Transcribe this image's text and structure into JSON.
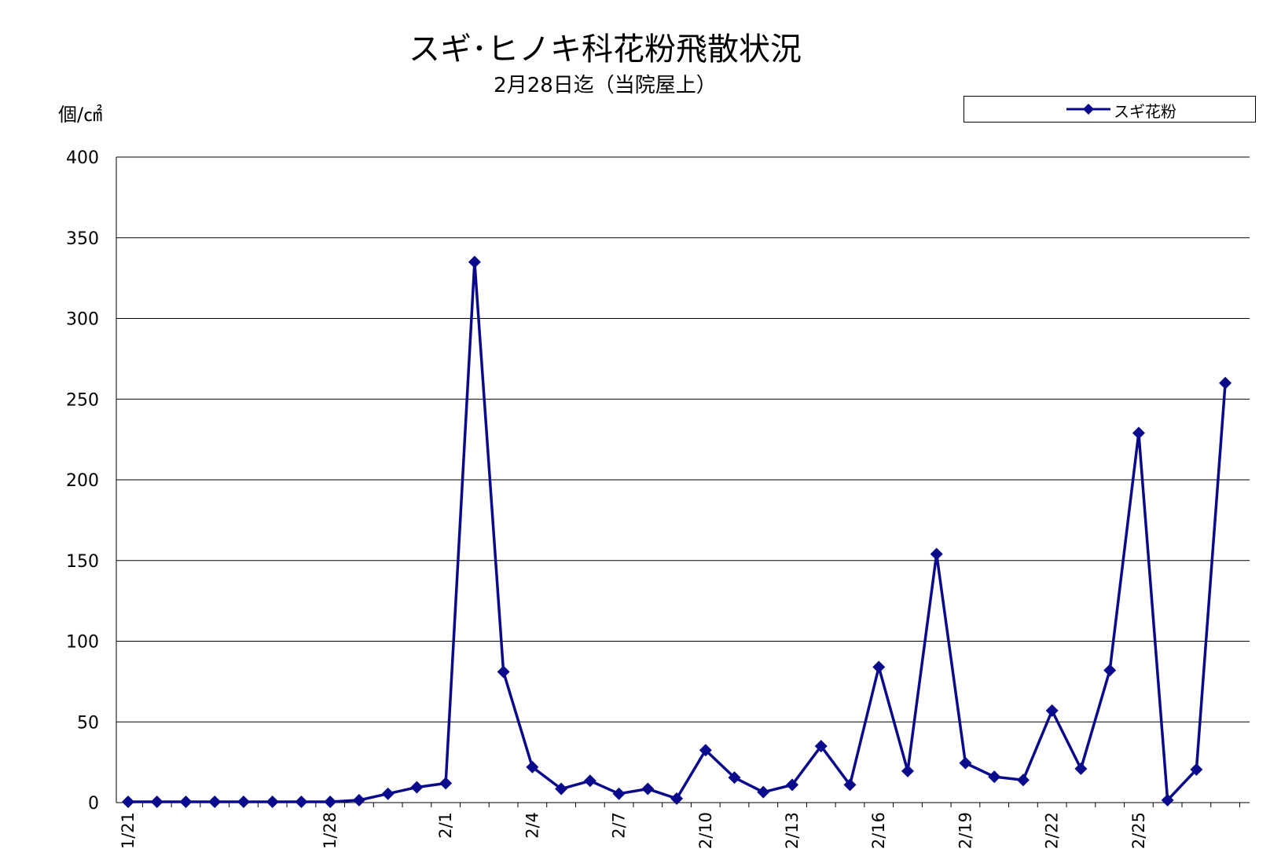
{
  "title": "スギ･ヒノキ科花粉飛散状況",
  "subtitle": "2月28日迄（当院屋上）",
  "chart_data": {
    "type": "line",
    "ylabel": "個/㎠",
    "ylim": [
      0,
      400
    ],
    "yticks": [
      0,
      50,
      100,
      150,
      200,
      250,
      300,
      350,
      400
    ],
    "grid": true,
    "legend_position": "top-right",
    "x_tick_labels": [
      {
        "index": 0,
        "label": "1/21"
      },
      {
        "index": 7,
        "label": "1/28"
      },
      {
        "index": 11,
        "label": "2/1"
      },
      {
        "index": 14,
        "label": "2/4"
      },
      {
        "index": 17,
        "label": "2/7"
      },
      {
        "index": 20,
        "label": "2/10"
      },
      {
        "index": 23,
        "label": "2/13"
      },
      {
        "index": 26,
        "label": "2/16"
      },
      {
        "index": 29,
        "label": "2/19"
      },
      {
        "index": 32,
        "label": "2/22"
      },
      {
        "index": 35,
        "label": "2/25"
      }
    ],
    "x": [
      "1/21",
      "1/22",
      "1/23",
      "1/24",
      "1/25",
      "1/26",
      "1/27",
      "1/28",
      "1/29",
      "1/30",
      "1/31",
      "2/1",
      "2/2",
      "2/3",
      "2/4",
      "2/5",
      "2/6",
      "2/7",
      "2/8",
      "2/9",
      "2/10",
      "2/11",
      "2/12",
      "2/13",
      "2/14",
      "2/15",
      "2/16",
      "2/17",
      "2/18",
      "2/19",
      "2/20",
      "2/21",
      "2/22",
      "2/23",
      "2/24",
      "2/25",
      "2/26",
      "2/27",
      "2/28"
    ],
    "series": [
      {
        "name": "スギ花粉",
        "color": "#0a0a8c",
        "values": [
          0.5,
          0.5,
          0.5,
          0.5,
          0.5,
          0.5,
          0.5,
          0.5,
          1.5,
          5.5,
          9.5,
          12,
          335,
          81,
          22,
          8.5,
          13.5,
          5.5,
          8.5,
          2.5,
          32.5,
          15.5,
          6.5,
          11,
          35,
          11,
          84,
          19.5,
          154,
          24.5,
          16,
          14,
          57,
          21,
          82,
          229,
          1.5,
          20.5,
          260
        ]
      }
    ]
  }
}
